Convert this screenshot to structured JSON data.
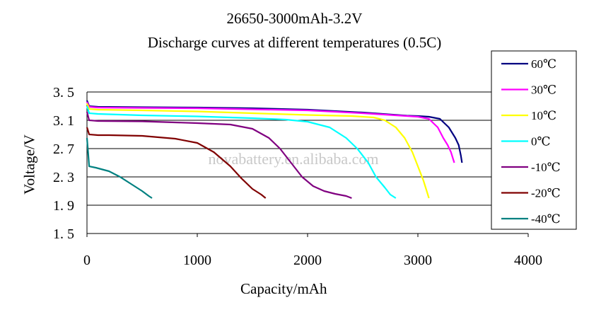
{
  "chart_data": {
    "type": "line",
    "title": "26650-3000mAh-3.2V",
    "subtitle": "Discharge curves at different temperatures (0.5C)",
    "xlabel": "Capacity/mAh",
    "ylabel": "Voltage/V",
    "xlim": [
      0,
      4000
    ],
    "ylim": [
      1.5,
      3.5
    ],
    "x_ticks": [
      0,
      1000,
      2000,
      3000,
      4000
    ],
    "x_tick_labels": [
      "0",
      "1000",
      "2000",
      "3000",
      "4000"
    ],
    "y_ticks": [
      3.5,
      3.1,
      2.7,
      2.3,
      1.9,
      1.5
    ],
    "y_tick_labels": [
      "3. 5",
      "3. 1",
      "2. 7",
      "2. 3",
      "1. 9",
      "1. 5"
    ],
    "grid": "horizontal",
    "legend_position": "right",
    "watermark": "novabattery.en.alibaba.com",
    "series": [
      {
        "name": "60℃",
        "color": "#000080",
        "points": [
          [
            0,
            3.38
          ],
          [
            20,
            3.3
          ],
          [
            100,
            3.29
          ],
          [
            500,
            3.285
          ],
          [
            1000,
            3.28
          ],
          [
            1500,
            3.27
          ],
          [
            2000,
            3.25
          ],
          [
            2500,
            3.21
          ],
          [
            2900,
            3.165
          ],
          [
            3000,
            3.16
          ],
          [
            3100,
            3.15
          ],
          [
            3200,
            3.12
          ],
          [
            3280,
            3.0
          ],
          [
            3340,
            2.85
          ],
          [
            3370,
            2.75
          ],
          [
            3390,
            2.6
          ],
          [
            3400,
            2.5
          ]
        ]
      },
      {
        "name": "30℃",
        "color": "#ff00ff",
        "points": [
          [
            0,
            3.36
          ],
          [
            20,
            3.29
          ],
          [
            100,
            3.28
          ],
          [
            500,
            3.275
          ],
          [
            1000,
            3.27
          ],
          [
            1500,
            3.255
          ],
          [
            2000,
            3.24
          ],
          [
            2500,
            3.2
          ],
          [
            2800,
            3.17
          ],
          [
            3000,
            3.15
          ],
          [
            3100,
            3.12
          ],
          [
            3180,
            3.0
          ],
          [
            3230,
            2.85
          ],
          [
            3270,
            2.75
          ],
          [
            3300,
            2.65
          ],
          [
            3320,
            2.55
          ],
          [
            3330,
            2.5
          ]
        ]
      },
      {
        "name": "10℃",
        "color": "#ffff00",
        "points": [
          [
            0,
            3.34
          ],
          [
            20,
            3.26
          ],
          [
            100,
            3.25
          ],
          [
            500,
            3.24
          ],
          [
            1000,
            3.225
          ],
          [
            1500,
            3.2
          ],
          [
            2000,
            3.175
          ],
          [
            2400,
            3.16
          ],
          [
            2600,
            3.14
          ],
          [
            2700,
            3.1
          ],
          [
            2800,
            3.0
          ],
          [
            2880,
            2.85
          ],
          [
            2950,
            2.65
          ],
          [
            3000,
            2.45
          ],
          [
            3050,
            2.25
          ],
          [
            3080,
            2.1
          ],
          [
            3100,
            2.0
          ]
        ]
      },
      {
        "name": "0℃",
        "color": "#00ffff",
        "points": [
          [
            0,
            3.3
          ],
          [
            20,
            3.2
          ],
          [
            100,
            3.19
          ],
          [
            500,
            3.17
          ],
          [
            1000,
            3.155
          ],
          [
            1500,
            3.13
          ],
          [
            1800,
            3.11
          ],
          [
            2000,
            3.08
          ],
          [
            2200,
            3.0
          ],
          [
            2350,
            2.85
          ],
          [
            2450,
            2.7
          ],
          [
            2550,
            2.5
          ],
          [
            2620,
            2.3
          ],
          [
            2700,
            2.15
          ],
          [
            2750,
            2.05
          ],
          [
            2800,
            2.0
          ]
        ]
      },
      {
        "name": "-10℃",
        "color": "#800080",
        "points": [
          [
            0,
            3.22
          ],
          [
            20,
            3.1
          ],
          [
            100,
            3.09
          ],
          [
            500,
            3.085
          ],
          [
            1000,
            3.06
          ],
          [
            1300,
            3.04
          ],
          [
            1500,
            2.98
          ],
          [
            1650,
            2.85
          ],
          [
            1750,
            2.7
          ],
          [
            1850,
            2.5
          ],
          [
            1950,
            2.3
          ],
          [
            2050,
            2.17
          ],
          [
            2150,
            2.1
          ],
          [
            2250,
            2.06
          ],
          [
            2350,
            2.03
          ],
          [
            2400,
            2.0
          ]
        ]
      },
      {
        "name": "-20℃",
        "color": "#800000",
        "points": [
          [
            0,
            3.0
          ],
          [
            20,
            2.9
          ],
          [
            100,
            2.89
          ],
          [
            200,
            2.89
          ],
          [
            500,
            2.88
          ],
          [
            800,
            2.84
          ],
          [
            1000,
            2.78
          ],
          [
            1150,
            2.65
          ],
          [
            1300,
            2.45
          ],
          [
            1400,
            2.28
          ],
          [
            1500,
            2.13
          ],
          [
            1580,
            2.05
          ],
          [
            1620,
            2.0
          ]
        ]
      },
      {
        "name": "-40℃",
        "color": "#008080",
        "points": [
          [
            0,
            2.85
          ],
          [
            10,
            2.65
          ],
          [
            20,
            2.45
          ],
          [
            80,
            2.43
          ],
          [
            200,
            2.38
          ],
          [
            300,
            2.3
          ],
          [
            400,
            2.2
          ],
          [
            500,
            2.1
          ],
          [
            560,
            2.03
          ],
          [
            590,
            2.0
          ]
        ]
      }
    ]
  }
}
